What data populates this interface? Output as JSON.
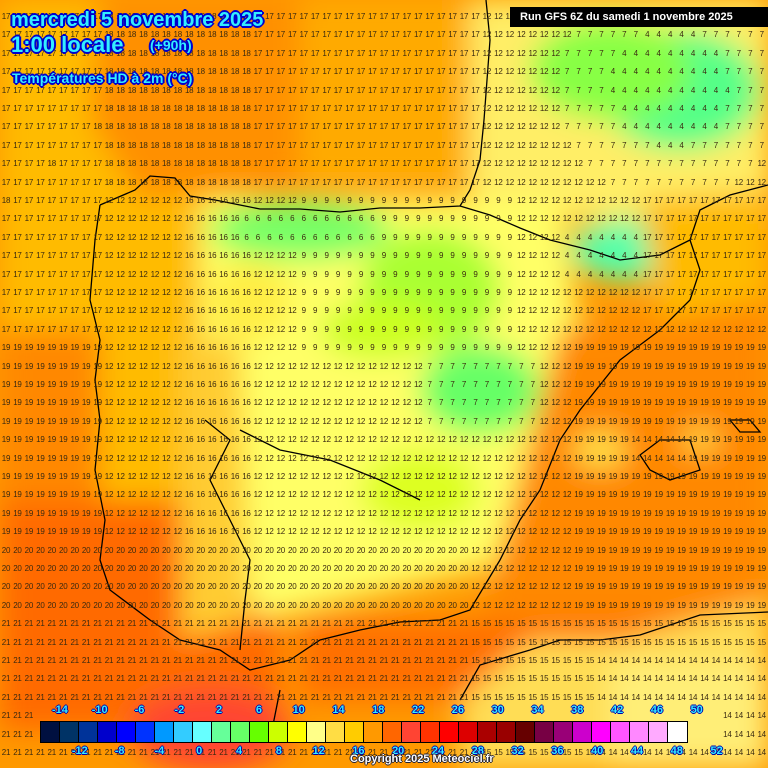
{
  "header": {
    "date": "mercredi 5 novembre 2025",
    "hour": "1:00 locale",
    "lead": "(+90h)",
    "parameter": "Températures HD à 2m (°C)",
    "run": "Run GFS 6Z du samedi 1 novembre 2025"
  },
  "footer": {
    "copyright": "Copyright 2025 Meteociel.fr"
  },
  "legend": {
    "colors": [
      "#001040",
      "#003366",
      "#003399",
      "#0000cc",
      "#0000ff",
      "#0033ff",
      "#0099ff",
      "#33ccff",
      "#66ffff",
      "#66ff99",
      "#66ff66",
      "#66ff00",
      "#ccff00",
      "#ffff00",
      "#ffff88",
      "#ffdd44",
      "#ffcc00",
      "#ff9900",
      "#ff6600",
      "#ff4433",
      "#ff3300",
      "#ff0000",
      "#dd0000",
      "#aa0000",
      "#990000",
      "#660000",
      "#770044",
      "#990077",
      "#cc00cc",
      "#ff00ff",
      "#ff55ff",
      "#ff88ff",
      "#ffaaff",
      "#ffffff"
    ],
    "top_labels": [
      "-14",
      "-10",
      "-6",
      "-2",
      "2",
      "6",
      "10",
      "14",
      "18",
      "22",
      "26",
      "30",
      "34",
      "38",
      "42",
      "46",
      "50"
    ],
    "bottom_labels": [
      "-12",
      "-8",
      "-4",
      "0",
      "4",
      "8",
      "12",
      "16",
      "20",
      "24",
      "28",
      "32",
      "36",
      "40",
      "44",
      "48",
      "52"
    ]
  },
  "map": {
    "grid_cols": 67,
    "grid_rows": 41,
    "col_spacing": 11.45,
    "row_spacing": 18.4,
    "regions": [
      {
        "name": "atlantic-north",
        "value_range": "15-19"
      },
      {
        "name": "cantabrian-mountains",
        "value_range": "5-9"
      },
      {
        "name": "central-meseta",
        "value_range": "8-14"
      },
      {
        "name": "portugal-coast",
        "value_range": "16-20"
      },
      {
        "name": "mediterranean",
        "value_range": "18-20"
      },
      {
        "name": "balearics",
        "value_range": "13-15"
      },
      {
        "name": "pyrenees-southern-france",
        "value_range": "2-8"
      },
      {
        "name": "north-africa",
        "value_range": "12-17"
      },
      {
        "name": "alboran-sea",
        "value_range": "19-21"
      }
    ]
  }
}
